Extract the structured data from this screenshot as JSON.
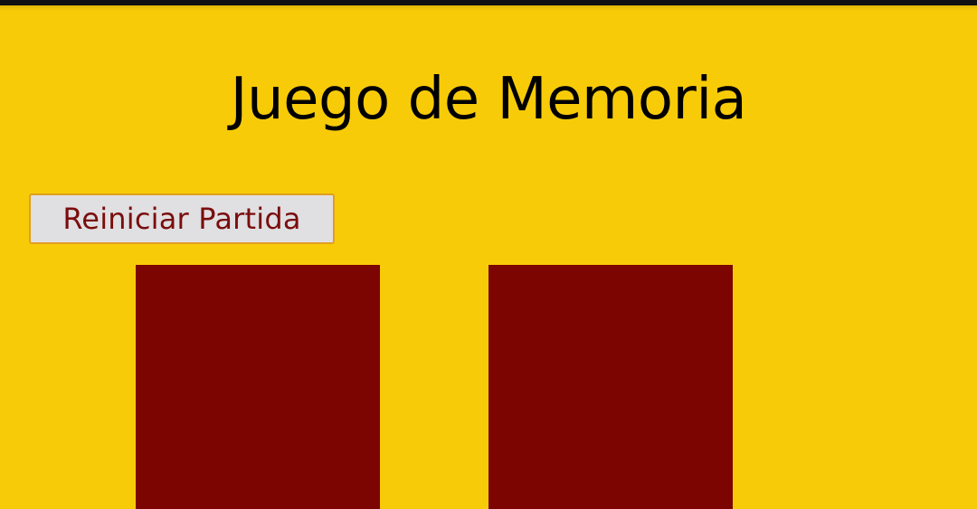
{
  "game": {
    "title": "Juego de Memoria",
    "reset_label": "Reiniciar Partida"
  },
  "board": {
    "cards": [
      {
        "state": "face-down"
      },
      {
        "state": "face-down"
      }
    ]
  },
  "colors": {
    "background": "#f8cb08",
    "card_back": "#7c0502",
    "button_text": "#7a0d0d",
    "button_border": "#e0a020",
    "button_bg": "#e0dfe2"
  }
}
